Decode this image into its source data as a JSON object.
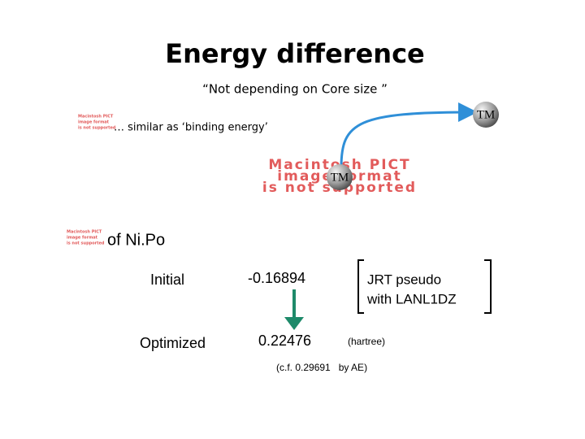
{
  "slide": {
    "title": "Energy difference",
    "subtitle": "“Not depending on Core size ”",
    "note": "… similar as ‘binding energy’",
    "sphere_label": "TM",
    "pict_placeholder": [
      "Macintosh PICT",
      "image format",
      "is not supported"
    ],
    "molecule": "of Ni.Po",
    "rows": [
      {
        "label": "Initial",
        "value": "-0.16894"
      },
      {
        "label": "Optimized",
        "value": "0.22476"
      }
    ],
    "method": [
      "JRT pseudo",
      "with LANL1DZ"
    ],
    "unit": "(hartree)",
    "reference": "(c.f. 0.29691   by AE)"
  }
}
